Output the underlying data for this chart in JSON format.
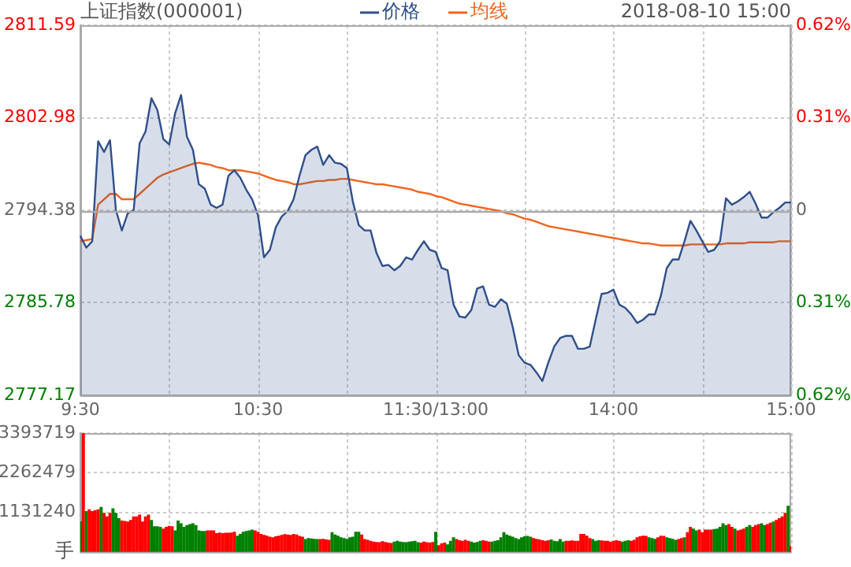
{
  "chart_data": [
    {
      "type": "line",
      "title": "上证指数(000001)",
      "annotations": [
        "2018-08-10 15:00"
      ],
      "legend": "top",
      "grid": true,
      "marker": "none",
      "categories": [
        "9:30",
        null,
        null,
        null,
        null,
        null,
        null,
        null,
        null,
        null,
        null,
        null,
        null,
        null,
        null,
        null,
        null,
        null,
        null,
        null,
        null,
        null,
        null,
        null,
        null,
        null,
        null,
        null,
        null,
        null,
        "10:30",
        null,
        null,
        null,
        null,
        null,
        null,
        null,
        null,
        null,
        null,
        null,
        null,
        null,
        null,
        null,
        null,
        null,
        null,
        null,
        null,
        null,
        null,
        null,
        null,
        null,
        null,
        null,
        null,
        null,
        "11:30/13:00",
        null,
        null,
        null,
        null,
        null,
        null,
        null,
        null,
        null,
        null,
        null,
        null,
        null,
        null,
        null,
        null,
        null,
        null,
        null,
        null,
        null,
        null,
        null,
        null,
        null,
        null,
        null,
        null,
        null,
        "14:00",
        null,
        null,
        null,
        null,
        null,
        null,
        null,
        null,
        null,
        null,
        null,
        null,
        null,
        null,
        null,
        null,
        null,
        null,
        null,
        null,
        null,
        null,
        null,
        null,
        null,
        null,
        null,
        null,
        null,
        "15:00"
      ],
      "ylim": [
        2777.17,
        2811.59
      ],
      "yticks": [
        2777.17,
        2785.78,
        2794.38,
        2802.98,
        2811.59
      ],
      "y2lim": [
        -0.62,
        0.62
      ],
      "y2ticks": [
        {
          "value": -0.62,
          "label": "0.62%"
        },
        {
          "value": -0.31,
          "label": "0.31%"
        },
        0,
        {
          "value": 0.31,
          "label": "0.31%"
        },
        {
          "value": 0.62,
          "label": "0.62%"
        }
      ],
      "ref_lines": [
        {
          "axis": "y",
          "value": 2794.38,
          "color": "#aaaaaa"
        }
      ],
      "series": [
        {
          "name": "价格",
          "type": "area",
          "color": "#2f4f8a",
          "values": [
            2792.0,
            2790.9,
            2791.5,
            2800.8,
            2799.8,
            2800.9,
            2794.4,
            2792.5,
            2794.1,
            2794.4,
            2800.6,
            2801.7,
            2804.8,
            2803.7,
            2801.0,
            2800.5,
            2803.4,
            2805.1,
            2801.2,
            2800.0,
            2796.8,
            2796.4,
            2794.9,
            2794.6,
            2794.9,
            2797.6,
            2798.1,
            2797.4,
            2796.3,
            2795.4,
            2793.9,
            2790.0,
            2790.7,
            2792.8,
            2793.8,
            2794.3,
            2795.4,
            2797.6,
            2799.5,
            2800.0,
            2800.3,
            2798.6,
            2799.5,
            2798.8,
            2798.7,
            2798.3,
            2795.2,
            2793.0,
            2792.5,
            2792.5,
            2790.4,
            2789.2,
            2789.3,
            2788.8,
            2789.2,
            2790.0,
            2789.8,
            2790.7,
            2791.5,
            2790.7,
            2790.5,
            2789.0,
            2788.8,
            2785.6,
            2784.5,
            2784.4,
            2785.1,
            2787.1,
            2787.3,
            2785.6,
            2785.4,
            2786.1,
            2785.7,
            2783.5,
            2780.9,
            2780.2,
            2780.0,
            2779.3,
            2778.5,
            2780.2,
            2781.7,
            2782.5,
            2782.7,
            2782.7,
            2781.5,
            2781.5,
            2781.7,
            2784.2,
            2786.6,
            2786.7,
            2787.0,
            2785.6,
            2785.3,
            2784.7,
            2783.9,
            2784.2,
            2784.7,
            2784.7,
            2786.4,
            2789.0,
            2789.8,
            2789.8,
            2791.5,
            2793.4,
            2792.5,
            2791.5,
            2790.5,
            2790.7,
            2791.5,
            2795.5,
            2794.9,
            2795.2,
            2795.6,
            2796.1,
            2795.0,
            2793.7,
            2793.7,
            2794.2,
            2794.6,
            2795.1,
            2795.1
          ]
        },
        {
          "name": "均线",
          "type": "line",
          "color": "#f0641e",
          "values": [
            2791.5,
            2791.6,
            2791.7,
            2794.9,
            2795.4,
            2795.9,
            2795.9,
            2795.4,
            2795.4,
            2795.4,
            2795.9,
            2796.4,
            2796.9,
            2797.4,
            2797.7,
            2797.9,
            2798.1,
            2798.3,
            2798.5,
            2798.7,
            2798.8,
            2798.7,
            2798.6,
            2798.4,
            2798.3,
            2798.1,
            2798.1,
            2798.1,
            2798.0,
            2797.9,
            2797.8,
            2797.6,
            2797.4,
            2797.2,
            2797.1,
            2797.0,
            2796.8,
            2796.8,
            2796.9,
            2797.0,
            2797.1,
            2797.1,
            2797.2,
            2797.2,
            2797.3,
            2797.3,
            2797.2,
            2797.1,
            2797.0,
            2796.9,
            2796.8,
            2796.8,
            2796.7,
            2796.6,
            2796.5,
            2796.4,
            2796.3,
            2796.1,
            2796.0,
            2795.9,
            2795.7,
            2795.6,
            2795.4,
            2795.2,
            2795.0,
            2794.9,
            2794.8,
            2794.7,
            2794.6,
            2794.5,
            2794.4,
            2794.3,
            2794.1,
            2794.0,
            2793.8,
            2793.6,
            2793.5,
            2793.3,
            2793.1,
            2792.9,
            2792.8,
            2792.7,
            2792.6,
            2792.5,
            2792.4,
            2792.3,
            2792.2,
            2792.1,
            2792.0,
            2791.9,
            2791.8,
            2791.7,
            2791.6,
            2791.5,
            2791.4,
            2791.3,
            2791.3,
            2791.2,
            2791.1,
            2791.1,
            2791.1,
            2791.1,
            2791.1,
            2791.2,
            2791.2,
            2791.2,
            2791.2,
            2791.2,
            2791.2,
            2791.3,
            2791.3,
            2791.3,
            2791.3,
            2791.4,
            2791.4,
            2791.4,
            2791.4,
            2791.4,
            2791.5,
            2791.5,
            2791.5
          ]
        }
      ]
    },
    {
      "type": "bar",
      "ylabel": "手",
      "grid": true,
      "tick_labels": "y",
      "categories": [
        null,
        null,
        null,
        null,
        null,
        null,
        null,
        null,
        null,
        null,
        null,
        null,
        null,
        null,
        null,
        null,
        null,
        null,
        null,
        null,
        null,
        null,
        null,
        null,
        null,
        null,
        null,
        null,
        null,
        null,
        null,
        null,
        null,
        null,
        null,
        null,
        null,
        null,
        null,
        null,
        null,
        null,
        null,
        null,
        null,
        null,
        null,
        null,
        null,
        null,
        null,
        null,
        null,
        null,
        null,
        null,
        null,
        null,
        null,
        null,
        null,
        null,
        null,
        null,
        null,
        null,
        null,
        null,
        null,
        null,
        null,
        null,
        null,
        null,
        null,
        null,
        null,
        null,
        null,
        null,
        null,
        null,
        null,
        null,
        null,
        null,
        null,
        null,
        null,
        null,
        null,
        null,
        null,
        null,
        null,
        null,
        null,
        null,
        null,
        null,
        null,
        null,
        null,
        null,
        null,
        null,
        null,
        null,
        null,
        null,
        null,
        null,
        null,
        null,
        null,
        null,
        null,
        null,
        null,
        null,
        null,
        null,
        null,
        null,
        null,
        null,
        null,
        null,
        null,
        null,
        null,
        null,
        null,
        null,
        null,
        null,
        null,
        null,
        null,
        null,
        null,
        null,
        null,
        null,
        null,
        null,
        null,
        null,
        null,
        null,
        null,
        null,
        null,
        null,
        null,
        null,
        null,
        null,
        null,
        null,
        null,
        null,
        null,
        null,
        null,
        null,
        null,
        null,
        null,
        null,
        null,
        null,
        null,
        null,
        null,
        null,
        null,
        null,
        null,
        null,
        null,
        null,
        null,
        null,
        null,
        null,
        null,
        null,
        null,
        null,
        null,
        null,
        null,
        null,
        null,
        null,
        null,
        null,
        null,
        null,
        null,
        null,
        null,
        null,
        null,
        null,
        null,
        null,
        null,
        null,
        null,
        null,
        null,
        null,
        null,
        null,
        null,
        null,
        null,
        null,
        null,
        null,
        null,
        null,
        null,
        null,
        null,
        null,
        null,
        null,
        null,
        null,
        null,
        null,
        null,
        null,
        null,
        null,
        null,
        null,
        null
      ],
      "ylim": [
        0,
        3393719
      ],
      "yticks": [
        1131240,
        2262479,
        3393719
      ],
      "values": [
        860000,
        3390000,
        1150000,
        1200000,
        1150000,
        1180000,
        1200000,
        1270000,
        1100000,
        1000000,
        1100000,
        1230000,
        1100000,
        950000,
        880000,
        870000,
        850000,
        900000,
        1000000,
        1000000,
        1050000,
        850000,
        1000000,
        1050000,
        900000,
        720000,
        720000,
        700000,
        650000,
        700000,
        730000,
        720000,
        600000,
        880000,
        800000,
        700000,
        750000,
        780000,
        800000,
        750000,
        600000,
        580000,
        580000,
        600000,
        600000,
        600000,
        520000,
        540000,
        520000,
        530000,
        530000,
        540000,
        560000,
        450000,
        500000,
        560000,
        580000,
        600000,
        620000,
        600000,
        560000,
        500000,
        470000,
        450000,
        420000,
        400000,
        430000,
        450000,
        470000,
        490000,
        480000,
        470000,
        500000,
        480000,
        440000,
        420000,
        350000,
        380000,
        370000,
        360000,
        350000,
        350000,
        360000,
        340000,
        330000,
        550000,
        480000,
        450000,
        400000,
        380000,
        360000,
        400000,
        420000,
        560000,
        560000,
        480000,
        350000,
        330000,
        300000,
        280000,
        270000,
        260000,
        290000,
        270000,
        250000,
        240000,
        280000,
        300000,
        280000,
        270000,
        260000,
        280000,
        290000,
        300000,
        260000,
        250000,
        280000,
        260000,
        250000,
        270000,
        560000,
        180000,
        230000,
        250000,
        200000,
        300000,
        400000,
        350000,
        320000,
        300000,
        330000,
        300000,
        280000,
        250000,
        270000,
        300000,
        320000,
        300000,
        280000,
        280000,
        300000,
        320000,
        400000,
        550000,
        480000,
        450000,
        420000,
        380000,
        350000,
        400000,
        430000,
        440000,
        420000,
        380000,
        360000,
        340000,
        320000,
        300000,
        320000,
        340000,
        300000,
        290000,
        350000,
        280000,
        300000,
        300000,
        310000,
        300000,
        300000,
        500000,
        500000,
        450000,
        380000,
        350000,
        300000,
        320000,
        310000,
        300000,
        300000,
        280000,
        300000,
        320000,
        300000,
        280000,
        300000,
        320000,
        300000,
        330000,
        400000,
        430000,
        450000,
        440000,
        400000,
        380000,
        360000,
        400000,
        450000,
        440000,
        400000,
        380000,
        360000,
        330000,
        350000,
        380000,
        400000,
        550000,
        700000,
        650000,
        600000,
        620000,
        550000,
        620000,
        620000,
        620000,
        640000,
        650000,
        700000,
        800000,
        750000,
        780000,
        700000,
        650000,
        600000,
        620000,
        650000,
        700000,
        750000,
        700000,
        750000,
        780000,
        800000,
        750000,
        780000,
        820000,
        850000,
        900000,
        950000,
        1000000,
        1100000,
        1300000,
        150000
      ],
      "colors": [
        "#008000",
        "#ff0000",
        "#008000",
        "#ff0000",
        "#ff0000",
        "#ff0000",
        "#ff0000",
        "#008000",
        "#ff0000",
        "#ff0000",
        "#ff0000",
        "#008000",
        "#008000",
        "#008000",
        "#ff0000",
        "#ff0000",
        "#ff0000",
        "#ff0000",
        "#ff0000",
        "#ff0000",
        "#ff0000",
        "#ff0000",
        "#ff0000",
        "#ff0000",
        "#008000",
        "#008000",
        "#008000",
        "#008000",
        "#ff0000",
        "#ff0000",
        "#ff0000",
        "#ff0000",
        "#008000",
        "#008000",
        "#008000",
        "#008000",
        "#008000",
        "#008000",
        "#008000",
        "#008000",
        "#008000",
        "#008000",
        "#008000",
        "#ff0000",
        "#ff0000",
        "#ff0000",
        "#ff0000",
        "#ff0000",
        "#ff0000",
        "#ff0000",
        "#ff0000",
        "#ff0000",
        "#ff0000",
        "#008000",
        "#008000",
        "#008000",
        "#008000",
        "#008000",
        "#008000",
        "#ff0000",
        "#ff0000",
        "#ff0000",
        "#ff0000",
        "#ff0000",
        "#ff0000",
        "#ff0000",
        "#ff0000",
        "#ff0000",
        "#ff0000",
        "#ff0000",
        "#ff0000",
        "#ff0000",
        "#ff0000",
        "#ff0000",
        "#ff0000",
        "#ff0000",
        "#008000",
        "#008000",
        "#008000",
        "#008000",
        "#008000",
        "#ff0000",
        "#ff0000",
        "#ff0000",
        "#ff0000",
        "#008000",
        "#008000",
        "#008000",
        "#008000",
        "#008000",
        "#008000",
        "#008000",
        "#008000",
        "#008000",
        "#008000",
        "#ff0000",
        "#ff0000",
        "#ff0000",
        "#ff0000",
        "#ff0000",
        "#ff0000",
        "#ff0000",
        "#ff0000",
        "#ff0000",
        "#ff0000",
        "#ff0000",
        "#008000",
        "#008000",
        "#008000",
        "#008000",
        "#008000",
        "#008000",
        "#008000",
        "#008000",
        "#008000",
        "#ff0000",
        "#ff0000",
        "#ff0000",
        "#ff0000",
        "#ff0000",
        "#008000",
        "#ff0000",
        "#ff0000",
        "#ff0000",
        "#008000",
        "#008000",
        "#008000",
        "#ff0000",
        "#ff0000",
        "#ff0000",
        "#ff0000",
        "#ff0000",
        "#008000",
        "#008000",
        "#008000",
        "#008000",
        "#ff0000",
        "#ff0000",
        "#ff0000",
        "#008000",
        "#008000",
        "#008000",
        "#008000",
        "#008000",
        "#008000",
        "#008000",
        "#008000",
        "#008000",
        "#008000",
        "#008000",
        "#008000",
        "#008000",
        "#008000",
        "#ff0000",
        "#ff0000",
        "#ff0000",
        "#ff0000",
        "#ff0000",
        "#ff0000",
        "#008000",
        "#008000",
        "#008000",
        "#008000",
        "#008000",
        "#ff0000",
        "#ff0000",
        "#ff0000",
        "#ff0000",
        "#ff0000",
        "#ff0000",
        "#ff0000",
        "#ff0000",
        "#ff0000",
        "#008000",
        "#008000",
        "#008000",
        "#ff0000",
        "#ff0000",
        "#ff0000",
        "#ff0000",
        "#ff0000",
        "#ff0000",
        "#ff0000",
        "#008000",
        "#008000",
        "#008000",
        "#ff0000",
        "#ff0000",
        "#ff0000",
        "#ff0000",
        "#ff0000",
        "#ff0000",
        "#008000",
        "#008000",
        "#008000",
        "#ff0000",
        "#ff0000",
        "#ff0000",
        "#008000",
        "#008000",
        "#008000",
        "#008000",
        "#ff0000",
        "#ff0000",
        "#008000",
        "#ff0000",
        "#ff0000",
        "#008000",
        "#008000",
        "#ff0000",
        "#ff0000",
        "#ff0000",
        "#ff0000",
        "#ff0000",
        "#008000",
        "#008000",
        "#008000",
        "#008000",
        "#008000",
        "#ff0000",
        "#ff0000",
        "#008000",
        "#ff0000",
        "#ff0000",
        "#ff0000",
        "#008000",
        "#008000",
        "#ff0000",
        "#ff0000",
        "#ff0000",
        "#008000",
        "#008000",
        "#ff0000",
        "#ff0000",
        "#008000",
        "#ff0000",
        "#ff0000",
        "#ff0000",
        "#ff0000",
        "#008000",
        "#ff0000"
      ]
    }
  ]
}
